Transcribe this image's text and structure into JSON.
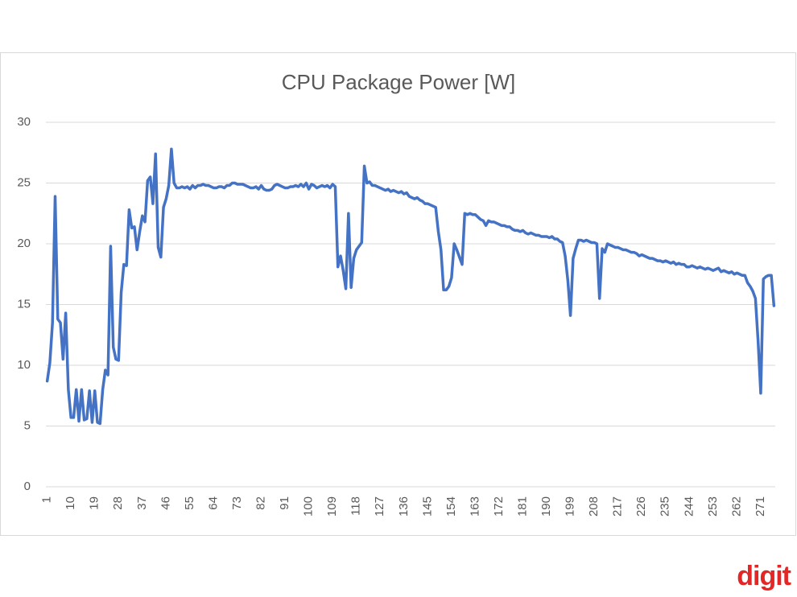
{
  "chart_data": {
    "type": "line",
    "title": "CPU Package Power [W]",
    "watermark": "digit",
    "color": "#4472c4",
    "grid": true,
    "x": [
      1,
      2,
      3,
      4,
      5,
      6,
      7,
      8,
      9,
      10,
      11,
      12,
      13,
      14,
      15,
      16,
      17,
      18,
      19,
      20,
      21,
      22,
      23,
      24,
      25,
      26,
      27,
      28,
      29,
      30,
      31,
      32,
      33,
      34,
      35,
      36,
      37,
      38,
      39,
      40,
      41,
      42,
      43,
      44,
      45,
      46,
      47,
      48,
      49,
      50,
      51,
      52,
      53,
      54,
      55,
      56,
      57,
      58,
      59,
      60,
      61,
      62,
      63,
      64,
      65,
      66,
      67,
      68,
      69,
      70,
      71,
      72,
      73,
      74,
      75,
      76,
      77,
      78,
      79,
      80,
      81,
      82,
      83,
      84,
      85,
      86,
      87,
      88,
      89,
      90,
      91,
      92,
      93,
      94,
      95,
      96,
      97,
      98,
      99,
      100,
      101,
      102,
      103,
      104,
      105,
      106,
      107,
      108,
      109,
      110,
      111,
      112,
      113,
      114,
      115,
      116,
      117,
      118,
      119,
      120,
      121,
      122,
      123,
      124,
      125,
      126,
      127,
      128,
      129,
      130,
      131,
      132,
      133,
      134,
      135,
      136,
      137,
      138,
      139,
      140,
      141,
      142,
      143,
      144,
      145,
      146,
      147,
      148,
      149,
      150,
      151,
      152,
      153,
      154,
      155,
      156,
      157,
      158,
      159,
      160,
      161,
      162,
      163,
      164,
      165,
      166,
      167,
      168,
      169,
      170,
      171,
      172,
      173,
      174,
      175,
      176,
      177,
      178,
      179,
      180,
      181,
      182,
      183,
      184,
      185,
      186,
      187,
      188,
      189,
      190,
      191,
      192,
      193,
      194,
      195,
      196,
      197,
      198,
      199,
      200,
      201,
      202,
      203,
      204,
      205,
      206,
      207,
      208,
      209,
      210,
      211,
      212,
      213,
      214,
      215,
      216,
      217,
      218,
      219,
      220,
      221,
      222,
      223,
      224,
      225,
      226,
      227,
      228,
      229,
      230,
      231,
      232,
      233,
      234,
      235,
      236,
      237,
      238,
      239,
      240,
      241,
      242,
      243,
      244,
      245,
      246,
      247,
      248,
      249,
      250,
      251,
      252,
      253,
      254,
      255,
      256,
      257,
      258,
      259,
      260,
      261,
      262,
      263,
      264,
      265,
      266,
      267,
      268,
      269,
      270,
      271,
      272,
      273,
      274,
      275,
      276
    ],
    "values": [
      8.7,
      10.2,
      13.5,
      23.9,
      13.8,
      13.5,
      10.5,
      14.3,
      8.0,
      5.7,
      5.7,
      8.0,
      5.4,
      8.0,
      5.5,
      5.6,
      7.9,
      5.3,
      7.9,
      5.3,
      5.2,
      8.0,
      9.6,
      9.2,
      19.8,
      11.5,
      10.5,
      10.4,
      16.0,
      18.3,
      18.2,
      22.8,
      21.3,
      21.4,
      19.5,
      21.0,
      22.3,
      21.8,
      25.2,
      25.5,
      23.3,
      27.4,
      19.7,
      18.9,
      23.0,
      23.7,
      24.8,
      27.8,
      25.0,
      24.6,
      24.6,
      24.7,
      24.6,
      24.7,
      24.5,
      24.8,
      24.6,
      24.8,
      24.8,
      24.9,
      24.8,
      24.8,
      24.7,
      24.6,
      24.6,
      24.7,
      24.7,
      24.6,
      24.8,
      24.8,
      25.0,
      25.0,
      24.9,
      24.9,
      24.9,
      24.8,
      24.7,
      24.6,
      24.6,
      24.7,
      24.5,
      24.8,
      24.5,
      24.4,
      24.4,
      24.5,
      24.8,
      24.9,
      24.8,
      24.7,
      24.6,
      24.6,
      24.7,
      24.7,
      24.8,
      24.7,
      24.9,
      24.7,
      25.0,
      24.5,
      24.9,
      24.8,
      24.6,
      24.7,
      24.8,
      24.7,
      24.8,
      24.6,
      24.9,
      24.7,
      18.1,
      19.0,
      17.8,
      16.3,
      22.5,
      16.4,
      18.8,
      19.5,
      19.8,
      20.1,
      26.4,
      25.0,
      25.1,
      24.8,
      24.8,
      24.7,
      24.6,
      24.5,
      24.4,
      24.5,
      24.3,
      24.4,
      24.3,
      24.2,
      24.3,
      24.1,
      24.2,
      23.9,
      23.8,
      23.7,
      23.8,
      23.6,
      23.5,
      23.3,
      23.3,
      23.2,
      23.1,
      23.0,
      21.0,
      19.5,
      16.2,
      16.2,
      16.5,
      17.2,
      20.0,
      19.5,
      18.9,
      18.3,
      22.5,
      22.4,
      22.5,
      22.4,
      22.4,
      22.2,
      22.0,
      21.9,
      21.5,
      21.9,
      21.8,
      21.8,
      21.7,
      21.6,
      21.5,
      21.5,
      21.4,
      21.4,
      21.2,
      21.1,
      21.1,
      21.0,
      21.1,
      20.9,
      20.8,
      20.9,
      20.8,
      20.7,
      20.7,
      20.6,
      20.6,
      20.6,
      20.5,
      20.6,
      20.4,
      20.4,
      20.2,
      20.1,
      19.0,
      17.0,
      14.1,
      18.8,
      19.6,
      20.3,
      20.3,
      20.2,
      20.3,
      20.2,
      20.1,
      20.1,
      20.0,
      15.5,
      19.6,
      19.3,
      20.0,
      19.9,
      19.8,
      19.7,
      19.7,
      19.6,
      19.5,
      19.5,
      19.4,
      19.3,
      19.3,
      19.2,
      19.0,
      19.1,
      19.0,
      18.9,
      18.8,
      18.8,
      18.7,
      18.6,
      18.6,
      18.5,
      18.6,
      18.5,
      18.4,
      18.5,
      18.3,
      18.4,
      18.3,
      18.3,
      18.1,
      18.1,
      18.2,
      18.1,
      18.0,
      18.1,
      18.0,
      17.9,
      18.0,
      17.9,
      17.8,
      17.9,
      18.0,
      17.7,
      17.8,
      17.7,
      17.6,
      17.7,
      17.5,
      17.6,
      17.5,
      17.4,
      17.4,
      16.8,
      16.5,
      16.1,
      15.5,
      12.0,
      7.7,
      17.1,
      17.3,
      17.4,
      17.4,
      14.9
    ],
    "xlim": [
      0.5,
      276.5
    ],
    "xticks": [
      1,
      10,
      19,
      28,
      37,
      46,
      55,
      64,
      73,
      82,
      91,
      100,
      109,
      118,
      127,
      136,
      145,
      154,
      163,
      172,
      181,
      190,
      199,
      208,
      217,
      226,
      235,
      244,
      253,
      262,
      271
    ],
    "ylim": [
      0,
      30
    ],
    "yticks": [
      0,
      5,
      10,
      15,
      20,
      25,
      30
    ]
  }
}
